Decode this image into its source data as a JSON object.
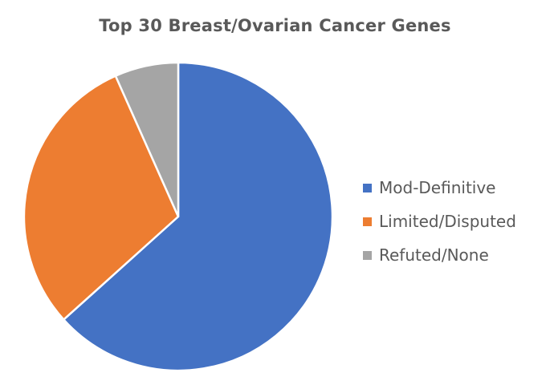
{
  "chart_data": {
    "type": "pie",
    "title": "Top 30 Breast/Ovarian Cancer Genes",
    "categories": [
      "Mod-Definitive",
      "Limited/Disputed",
      "Refuted/None"
    ],
    "values": [
      19,
      9,
      2
    ],
    "colors": [
      "#4472C4",
      "#ED7D31",
      "#A5A5A5"
    ],
    "start_angle_deg": 0,
    "direction": "clockwise",
    "legend_position": "right"
  }
}
